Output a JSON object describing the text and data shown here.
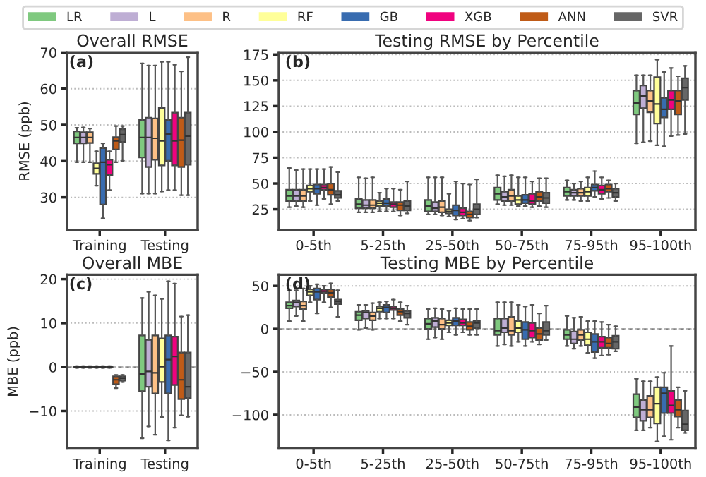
{
  "chart_data": [
    {
      "type": "box",
      "title": "Overall RMSE",
      "ylabel": "RMSE (ppb)",
      "annotations": [
        "(a)"
      ],
      "categories": [
        "Training",
        "Testing"
      ],
      "ylim": [
        21,
        70
      ],
      "yticks": [
        30,
        40,
        50,
        60,
        70
      ],
      "grid": "y",
      "legend": "top",
      "series": [
        {
          "name": "LR",
          "color": "#7fc97f",
          "boxes": [
            {
              "low": 39.7,
              "q1": 44.9,
              "median": 46.5,
              "q3": 48.2,
              "high": 49.2
            },
            {
              "low": 31,
              "q1": 41,
              "median": 46.5,
              "q3": 51.4,
              "high": 67
            }
          ]
        },
        {
          "name": "L",
          "color": "#beaed4",
          "boxes": [
            {
              "low": 39.7,
              "q1": 44.9,
              "median": 46.5,
              "q3": 48,
              "high": 49.3
            },
            {
              "low": 31,
              "q1": 38.4,
              "median": 46.5,
              "q3": 52,
              "high": 66.4
            }
          ]
        },
        {
          "name": "R",
          "color": "#fdc086",
          "boxes": [
            {
              "low": 39.7,
              "q1": 45,
              "median": 46.5,
              "q3": 48,
              "high": 49
            },
            {
              "low": 31,
              "q1": 40.4,
              "median": 46.3,
              "q3": 51.8,
              "high": 66.4
            }
          ]
        },
        {
          "name": "RF",
          "color": "#ffff99",
          "boxes": [
            {
              "low": 33.2,
              "q1": 36.5,
              "median": 38,
              "q3": 39.4,
              "high": 42.7
            },
            {
              "low": 31.6,
              "q1": 38.8,
              "median": 45.6,
              "q3": 54.7,
              "high": 67.4
            }
          ]
        },
        {
          "name": "GB",
          "color": "#386cb0",
          "boxes": [
            {
              "low": 24.2,
              "q1": 28,
              "median": 39.7,
              "q3": 43.6,
              "high": 44.9
            },
            {
              "low": 32,
              "q1": 40.1,
              "median": 47.5,
              "q3": 51.4,
              "high": 67.4
            }
          ]
        },
        {
          "name": "XGB",
          "color": "#f0027f",
          "boxes": [
            {
              "low": 32,
              "q1": 36.2,
              "median": 39,
              "q3": 40.4,
              "high": 42.7
            },
            {
              "low": 32,
              "q1": 38.8,
              "median": 45.6,
              "q3": 53.4,
              "high": 66.6
            }
          ]
        },
        {
          "name": "ANN",
          "color": "#bf5b17",
          "boxes": [
            {
              "low": 39.7,
              "q1": 43.2,
              "median": 45.6,
              "q3": 46.6,
              "high": 49.7
            },
            {
              "low": 30.6,
              "q1": 38.4,
              "median": 45.8,
              "q3": 52,
              "high": 64.8
            }
          ]
        },
        {
          "name": "SVR",
          "color": "#666666",
          "boxes": [
            {
              "low": 40.1,
              "q1": 45.3,
              "median": 47.3,
              "q3": 48.8,
              "high": 49.7
            },
            {
              "low": 30.6,
              "q1": 39,
              "median": 46.9,
              "q3": 53.4,
              "high": 68.7
            }
          ]
        }
      ]
    },
    {
      "type": "box",
      "title": "Testing RMSE by Percentile",
      "annotations": [
        "(b)"
      ],
      "categories": [
        "0-5th",
        "5-25th",
        "25-50th",
        "50-75th",
        "75-95th",
        "95-100th"
      ],
      "ylim": [
        5,
        177
      ],
      "yticks": [
        25,
        50,
        75,
        100,
        125,
        150,
        175
      ],
      "grid": "y",
      "series": [
        {
          "color": "#7fc97f",
          "boxes": [
            {
              "low": 27,
              "q1": 33,
              "median": 38,
              "q3": 44,
              "high": 65
            },
            {
              "low": 22,
              "q1": 26,
              "median": 30,
              "q3": 35,
              "high": 56
            },
            {
              "low": 20,
              "q1": 23,
              "median": 28,
              "q3": 34,
              "high": 56
            },
            {
              "low": 30,
              "q1": 34,
              "median": 40,
              "q3": 46,
              "high": 58
            },
            {
              "low": 34,
              "q1": 38,
              "median": 42,
              "q3": 46,
              "high": 53
            },
            {
              "low": 89,
              "q1": 117,
              "median": 128,
              "q3": 140,
              "high": 155
            }
          ]
        },
        {
          "color": "#beaed4",
          "boxes": [
            {
              "low": 28,
              "q1": 33,
              "median": 38,
              "q3": 44,
              "high": 63
            },
            {
              "low": 22,
              "q1": 26,
              "median": 29,
              "q3": 34,
              "high": 55
            },
            {
              "low": 20,
              "q1": 23,
              "median": 26,
              "q3": 32,
              "high": 56
            },
            {
              "low": 29,
              "q1": 33,
              "median": 37,
              "q3": 42,
              "high": 57
            },
            {
              "low": 34,
              "q1": 38,
              "median": 41,
              "q3": 44,
              "high": 50
            },
            {
              "low": 90,
              "q1": 123,
              "median": 135,
              "q3": 145,
              "high": 155
            }
          ]
        },
        {
          "color": "#fdc086",
          "boxes": [
            {
              "low": 27,
              "q1": 33,
              "median": 38,
              "q3": 44,
              "high": 64
            },
            {
              "low": 22,
              "q1": 26,
              "median": 29,
              "q3": 34,
              "high": 56
            },
            {
              "low": 19,
              "q1": 22,
              "median": 27,
              "q3": 33,
              "high": 56
            },
            {
              "low": 29,
              "q1": 33,
              "median": 38,
              "q3": 44,
              "high": 58
            },
            {
              "low": 33,
              "q1": 38,
              "median": 41,
              "q3": 45,
              "high": 52
            },
            {
              "low": 91,
              "q1": 119,
              "median": 130,
              "q3": 140,
              "high": 155
            }
          ]
        },
        {
          "color": "#ffff99",
          "boxes": [
            {
              "low": 33,
              "q1": 42,
              "median": 45,
              "q3": 48,
              "high": 64
            },
            {
              "low": 23,
              "q1": 28,
              "median": 31,
              "q3": 33,
              "high": 41
            },
            {
              "low": 18,
              "q1": 21,
              "median": 23,
              "q3": 25,
              "high": 40
            },
            {
              "low": 28,
              "q1": 30,
              "median": 34,
              "q3": 38,
              "high": 56
            },
            {
              "low": 33,
              "q1": 38,
              "median": 42,
              "q3": 46,
              "high": 56
            },
            {
              "low": 87,
              "q1": 108,
              "median": 127,
              "q3": 153,
              "high": 170
            }
          ]
        },
        {
          "color": "#386cb0",
          "boxes": [
            {
              "low": 29,
              "q1": 40,
              "median": 45,
              "q3": 49,
              "high": 64
            },
            {
              "low": 23,
              "q1": 28,
              "median": 31,
              "q3": 35,
              "high": 45
            },
            {
              "low": 15,
              "q1": 19,
              "median": 24,
              "q3": 29,
              "high": 52
            },
            {
              "low": 28,
              "q1": 31,
              "median": 34,
              "q3": 39,
              "high": 56
            },
            {
              "low": 37,
              "q1": 43,
              "median": 46,
              "q3": 49,
              "high": 62
            },
            {
              "low": 86,
              "q1": 114,
              "median": 122,
              "q3": 133,
              "high": 158
            }
          ]
        },
        {
          "color": "#f0027f",
          "boxes": [
            {
              "low": 35,
              "q1": 44,
              "median": 46,
              "q3": 49,
              "high": 64
            },
            {
              "low": 23,
              "q1": 27,
              "median": 30,
              "q3": 32,
              "high": 45
            },
            {
              "low": 16,
              "q1": 19,
              "median": 22,
              "q3": 26,
              "high": 50
            },
            {
              "low": 27,
              "q1": 30,
              "median": 33,
              "q3": 40,
              "high": 52
            },
            {
              "low": 35,
              "q1": 40,
              "median": 44,
              "q3": 48,
              "high": 56
            },
            {
              "low": 96,
              "q1": 122,
              "median": 131,
              "q3": 140,
              "high": 162
            }
          ]
        },
        {
          "color": "#bf5b17",
          "boxes": [
            {
              "low": 30,
              "q1": 39,
              "median": 44,
              "q3": 50,
              "high": 66
            },
            {
              "low": 19,
              "q1": 24,
              "median": 29,
              "q3": 32,
              "high": 44
            },
            {
              "low": 14,
              "q1": 17,
              "median": 20,
              "q3": 23,
              "high": 49
            },
            {
              "low": 28,
              "q1": 33,
              "median": 37,
              "q3": 42,
              "high": 55
            },
            {
              "low": 36,
              "q1": 42,
              "median": 45,
              "q3": 49,
              "high": 53
            },
            {
              "low": 97,
              "q1": 117,
              "median": 130,
              "q3": 140,
              "high": 154
            }
          ]
        },
        {
          "color": "#666666",
          "boxes": [
            {
              "low": 33,
              "q1": 36,
              "median": 39,
              "q3": 43,
              "high": 61
            },
            {
              "low": 21,
              "q1": 24,
              "median": 28,
              "q3": 33,
              "high": 52
            },
            {
              "low": 17,
              "q1": 20,
              "median": 25,
              "q3": 30,
              "high": 54
            },
            {
              "low": 27,
              "q1": 31,
              "median": 36,
              "q3": 41,
              "high": 55
            },
            {
              "low": 33,
              "q1": 37,
              "median": 41,
              "q3": 45,
              "high": 50
            },
            {
              "low": 98,
              "q1": 131,
              "median": 143,
              "q3": 152,
              "high": 164
            }
          ]
        }
      ]
    },
    {
      "type": "box",
      "title": "Overall MBE",
      "ylabel": "MBE (ppb)",
      "annotations": [
        "(c)"
      ],
      "categories": [
        "Training",
        "Testing"
      ],
      "ylim": [
        -18.5,
        21
      ],
      "yticks": [
        {
          "value": -10,
          "label": "−10"
        },
        0,
        10,
        20
      ],
      "grid": "y",
      "ref_lines": [
        {
          "axis": "y",
          "value": 0,
          "color": "#808080",
          "line_style": "dashed"
        }
      ],
      "series": [
        {
          "color": "#7fc97f",
          "boxes": [
            {
              "low": -0.2,
              "q1": -0.1,
              "median": 0,
              "q3": 0.1,
              "high": 0.2
            },
            {
              "low": -16.2,
              "q1": -5.5,
              "median": -1.6,
              "q3": 7.2,
              "high": 15.7
            }
          ]
        },
        {
          "color": "#beaed4",
          "boxes": [
            {
              "low": -0.2,
              "q1": -0.1,
              "median": 0,
              "q3": 0.1,
              "high": 0.2
            },
            {
              "low": -13.5,
              "q1": -4.5,
              "median": -1,
              "q3": 6.2,
              "high": 17.1
            }
          ]
        },
        {
          "color": "#fdc086",
          "boxes": [
            {
              "low": -0.2,
              "q1": -0.1,
              "median": 0,
              "q3": 0.1,
              "high": 0.2
            },
            {
              "low": -15.4,
              "q1": -6,
              "median": -1.3,
              "q3": 7.2,
              "high": 16.3
            }
          ]
        },
        {
          "color": "#ffff99",
          "boxes": [
            {
              "low": -0.2,
              "q1": -0.1,
              "median": 0,
              "q3": 0.1,
              "high": 0.2
            },
            {
              "low": -11.4,
              "q1": -3.4,
              "median": 0.1,
              "q3": 6.5,
              "high": 15.5
            }
          ]
        },
        {
          "color": "#386cb0",
          "boxes": [
            {
              "low": -0.2,
              "q1": -0.1,
              "median": 0,
              "q3": 0.1,
              "high": 0.2
            },
            {
              "low": -16.7,
              "q1": -6,
              "median": 1.7,
              "q3": 7.2,
              "high": 19.5
            }
          ]
        },
        {
          "color": "#f0027f",
          "boxes": [
            {
              "low": -0.2,
              "q1": -0.1,
              "median": 0,
              "q3": 0.1,
              "high": 0.2
            },
            {
              "low": -13.8,
              "q1": -4.1,
              "median": 2.4,
              "q3": 6.9,
              "high": 19
            }
          ]
        },
        {
          "color": "#bf5b17",
          "boxes": [
            {
              "low": -4.8,
              "q1": -3.9,
              "median": -2.9,
              "q3": -2.1,
              "high": -1.8
            },
            {
              "low": -11,
              "q1": -7.3,
              "median": -2.9,
              "q3": 3.3,
              "high": 11.5
            }
          ]
        },
        {
          "color": "#666666",
          "boxes": [
            {
              "low": -3.4,
              "q1": -3.1,
              "median": -2.5,
              "q3": -2.1,
              "high": -1.8
            },
            {
              "low": -11.3,
              "q1": -7,
              "median": -4.5,
              "q3": 3.3,
              "high": 11.8
            }
          ]
        }
      ]
    },
    {
      "type": "box",
      "title": "Testing MBE by Percentile",
      "annotations": [
        "(d)"
      ],
      "categories": [
        "0-5th",
        "5-25th",
        "25-50th",
        "50-75th",
        "75-95th",
        "95-100th"
      ],
      "ylim": [
        -139,
        63
      ],
      "yticks": [
        {
          "value": -100,
          "label": "−100"
        },
        {
          "value": -50,
          "label": "−50"
        },
        0,
        50
      ],
      "grid": "y",
      "ref_lines": [
        {
          "axis": "y",
          "value": 0,
          "color": "#808080",
          "line_style": "dashed"
        }
      ],
      "series": [
        {
          "color": "#7fc97f",
          "boxes": [
            {
              "low": 9,
              "q1": 24,
              "median": 27,
              "q3": 31,
              "high": 45
            },
            {
              "low": -1,
              "q1": 10,
              "median": 16,
              "q3": 20,
              "high": 28
            },
            {
              "low": -12,
              "q1": 0,
              "median": 6,
              "q3": 12,
              "high": 23
            },
            {
              "low": -20,
              "q1": -7,
              "median": -2,
              "q3": 12,
              "high": 31
            },
            {
              "low": -20,
              "q1": -12,
              "median": -7,
              "q3": -1,
              "high": 15
            },
            {
              "low": -118,
              "q1": -103,
              "median": -91,
              "q3": -76,
              "high": -58
            }
          ]
        },
        {
          "color": "#beaed4",
          "boxes": [
            {
              "low": 15,
              "q1": 26,
              "median": 31,
              "q3": 33,
              "high": 45
            },
            {
              "low": 1,
              "q1": 12,
              "median": 19,
              "q3": 21,
              "high": 28
            },
            {
              "low": -10,
              "q1": 2,
              "median": 9,
              "q3": 13,
              "high": 24
            },
            {
              "low": -18,
              "q1": -4,
              "median": 1,
              "q3": 12,
              "high": 31
            },
            {
              "low": -23,
              "q1": -17,
              "median": -12,
              "q3": -3,
              "high": 13
            },
            {
              "low": -118,
              "q1": -107,
              "median": -94,
              "q3": -83,
              "high": -61
            }
          ]
        },
        {
          "color": "#fdc086",
          "boxes": [
            {
              "low": 9,
              "q1": 23,
              "median": 27,
              "q3": 32,
              "high": 47
            },
            {
              "low": -1,
              "q1": 10,
              "median": 15,
              "q3": 19,
              "high": 30
            },
            {
              "low": -12,
              "q1": 0,
              "median": 5,
              "q3": 12,
              "high": 23
            },
            {
              "low": -20,
              "q1": -7,
              "median": -2,
              "q3": 14,
              "high": 31
            },
            {
              "low": -20,
              "q1": -13,
              "median": -7,
              "q3": -1,
              "high": 14
            },
            {
              "low": -115,
              "q1": -103,
              "median": -94,
              "q3": -78,
              "high": -61
            }
          ]
        },
        {
          "color": "#ffff99",
          "boxes": [
            {
              "low": 31,
              "q1": 39,
              "median": 43,
              "q3": 46,
              "high": 50
            },
            {
              "low": 12,
              "q1": 20,
              "median": 24,
              "q3": 26,
              "high": 31
            },
            {
              "low": -4,
              "q1": 4,
              "median": 7,
              "q3": 10,
              "high": 21
            },
            {
              "low": -15,
              "q1": -4,
              "median": 1,
              "q3": 9,
              "high": 28
            },
            {
              "low": -28,
              "q1": -19,
              "median": -12,
              "q3": -4,
              "high": 9
            },
            {
              "low": -131,
              "q1": -110,
              "median": -87,
              "q3": -68,
              "high": -56
            }
          ]
        },
        {
          "color": "#386cb0",
          "boxes": [
            {
              "low": 18,
              "q1": 34,
              "median": 43,
              "q3": 47,
              "high": 52
            },
            {
              "low": 12,
              "q1": 19,
              "median": 25,
              "q3": 28,
              "high": 32
            },
            {
              "low": -7,
              "q1": 4,
              "median": 9,
              "q3": 13,
              "high": 24
            },
            {
              "low": -20,
              "q1": -12,
              "median": -1,
              "q3": 8,
              "high": 26
            },
            {
              "low": -34,
              "q1": -27,
              "median": -15,
              "q3": -6,
              "high": 9
            },
            {
              "low": -125,
              "q1": -98,
              "median": -75,
              "q3": -68,
              "high": -51
            }
          ]
        },
        {
          "color": "#f0027f",
          "boxes": [
            {
              "low": 31,
              "q1": 42,
              "median": 44,
              "q3": 46,
              "high": 50
            },
            {
              "low": 12,
              "q1": 22,
              "median": 24,
              "q3": 26,
              "high": 34
            },
            {
              "low": -4,
              "q1": 4,
              "median": 7,
              "q3": 11,
              "high": 23
            },
            {
              "low": -15,
              "q1": -10,
              "median": -2,
              "q3": 7,
              "high": 28
            },
            {
              "low": -31,
              "q1": -22,
              "median": -15,
              "q3": -9,
              "high": 8
            },
            {
              "low": -129,
              "q1": -98,
              "median": -89,
              "q3": -72,
              "high": -20
            }
          ]
        },
        {
          "color": "#bf5b17",
          "boxes": [
            {
              "low": 25,
              "q1": 37,
              "median": 42,
              "q3": 46,
              "high": 53
            },
            {
              "low": 9,
              "q1": 16,
              "median": 20,
              "q3": 23,
              "high": 31
            },
            {
              "low": -7,
              "q1": -1,
              "median": 3,
              "q3": 8,
              "high": 23
            },
            {
              "low": -18,
              "q1": -13,
              "median": -6,
              "q3": 1,
              "high": 18
            },
            {
              "low": -30,
              "q1": -22,
              "median": -17,
              "q3": -10,
              "high": 5
            },
            {
              "low": -115,
              "q1": -102,
              "median": -94,
              "q3": -83,
              "high": -68
            }
          ]
        },
        {
          "color": "#666666",
          "boxes": [
            {
              "low": 14,
              "q1": 29,
              "median": 32,
              "q3": 34,
              "high": 45
            },
            {
              "low": 5,
              "q1": 13,
              "median": 18,
              "q3": 21,
              "high": 27
            },
            {
              "low": -7,
              "q1": 1,
              "median": 7,
              "q3": 9,
              "high": 23
            },
            {
              "low": -13,
              "q1": -7,
              "median": -2,
              "q3": 8,
              "high": 27
            },
            {
              "low": -26,
              "q1": -23,
              "median": -15,
              "q3": -8,
              "high": 3
            },
            {
              "low": -121,
              "q1": -118,
              "median": -111,
              "q3": -95,
              "high": -72
            }
          ]
        }
      ]
    }
  ]
}
